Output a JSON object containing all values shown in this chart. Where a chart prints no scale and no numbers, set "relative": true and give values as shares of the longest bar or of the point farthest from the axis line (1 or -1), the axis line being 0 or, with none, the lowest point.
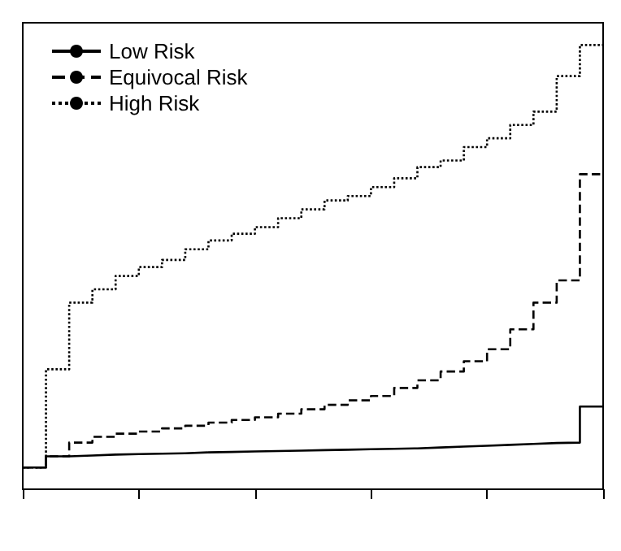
{
  "chart_data": {
    "type": "step",
    "relative": true,
    "legend": "top left",
    "grid": false,
    "categories": [
      null,
      null,
      null,
      null,
      null,
      null,
      null,
      null,
      null,
      null,
      null,
      null,
      null,
      null,
      null,
      null,
      null,
      null,
      null,
      null,
      null,
      null,
      null,
      null,
      null,
      null
    ],
    "series": [
      {
        "name": "Low Risk",
        "color": "#000000",
        "line_style": "solid",
        "values": [
          0.049,
          0.074,
          0.076,
          0.078,
          0.079,
          0.08,
          0.081,
          0.083,
          0.084,
          0.085,
          0.086,
          0.087,
          0.088,
          0.089,
          0.09,
          0.091,
          0.092,
          0.094,
          0.096,
          0.098,
          0.1,
          0.102,
          0.104,
          0.105,
          0.186,
          0.186
        ]
      },
      {
        "name": "Equivocal Risk",
        "color": "#000000",
        "line_style": "dashed",
        "values": [
          0.049,
          0.074,
          0.105,
          0.118,
          0.125,
          0.13,
          0.137,
          0.143,
          0.15,
          0.156,
          0.162,
          0.17,
          0.18,
          0.19,
          0.2,
          0.21,
          0.228,
          0.245,
          0.265,
          0.288,
          0.315,
          0.36,
          0.42,
          0.47,
          0.709,
          0.709
        ]
      },
      {
        "name": "High Risk",
        "color": "#000000",
        "line_style": "dotted",
        "values": [
          0.049,
          0.27,
          0.42,
          0.45,
          0.48,
          0.5,
          0.516,
          0.54,
          0.56,
          0.575,
          0.59,
          0.61,
          0.63,
          0.65,
          0.66,
          0.68,
          0.7,
          0.725,
          0.74,
          0.77,
          0.79,
          0.82,
          0.85,
          0.93,
          1.0,
          1.0
        ]
      }
    ]
  }
}
